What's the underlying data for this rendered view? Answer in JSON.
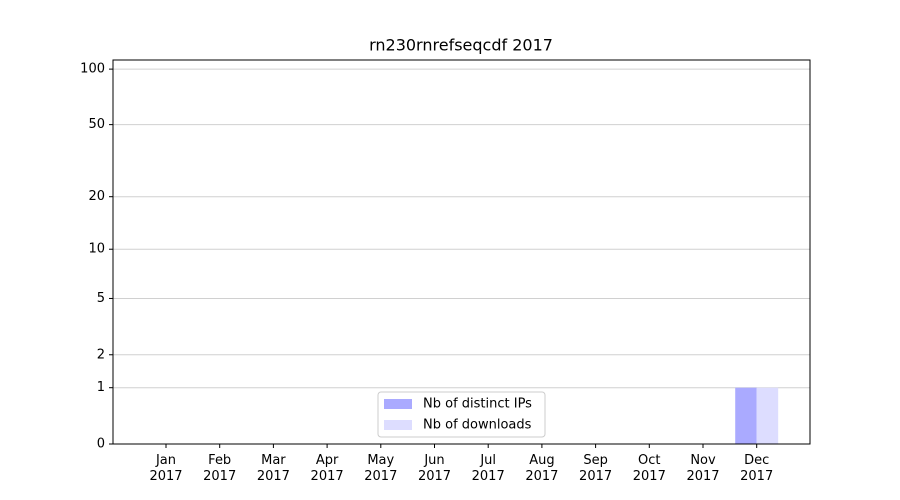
{
  "chart_data": {
    "type": "bar",
    "title": "rn230rnrefseqcdf 2017",
    "categories": [
      "Jan\n2017",
      "Feb\n2017",
      "Mar\n2017",
      "Apr\n2017",
      "May\n2017",
      "Jun\n2017",
      "Jul\n2017",
      "Aug\n2017",
      "Sep\n2017",
      "Oct\n2017",
      "Nov\n2017",
      "Dec\n2017"
    ],
    "series": [
      {
        "name": "Nb of distinct IPs",
        "color": "#aaaaff",
        "values": [
          0,
          0,
          0,
          0,
          0,
          0,
          0,
          0,
          0,
          0,
          0,
          1
        ]
      },
      {
        "name": "Nb of downloads",
        "color": "#ddddff",
        "values": [
          0,
          0,
          0,
          0,
          0,
          0,
          0,
          0,
          0,
          0,
          0,
          1
        ]
      }
    ],
    "y_scale": "log1p",
    "ylim": [
      0,
      112
    ],
    "yticks": [
      0,
      1,
      2,
      5,
      10,
      20,
      50,
      100
    ],
    "grid": true,
    "legend": "lower center"
  }
}
